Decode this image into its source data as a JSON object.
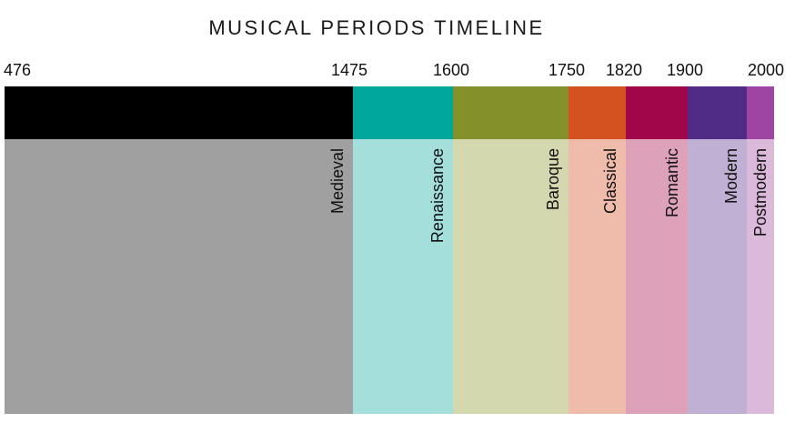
{
  "title": "MUSICAL PERIODS TIMELINE",
  "years": [
    "476",
    "1475",
    "1600",
    "1750",
    "1820",
    "1900",
    "2000"
  ],
  "periods": [
    {
      "name": "Medieval",
      "start": 476,
      "end": 1475,
      "band_color": "#000000",
      "fill_color": "#a0a0a0"
    },
    {
      "name": "Renaissance",
      "start": 1475,
      "end": 1600,
      "band_color": "#00a89c",
      "fill_color": "#a4dfdb"
    },
    {
      "name": "Baroque",
      "start": 1600,
      "end": 1750,
      "band_color": "#84902a",
      "fill_color": "#d3d8ae"
    },
    {
      "name": "Classical",
      "start": 1750,
      "end": 1820,
      "band_color": "#d35220",
      "fill_color": "#efbcab"
    },
    {
      "name": "Romantic",
      "start": 1820,
      "end": 1900,
      "band_color": "#a1064a",
      "fill_color": "#dda1ba"
    },
    {
      "name": "Modern",
      "start": 1900,
      "end": 2000,
      "band_color": "#512c86",
      "fill_color": "#c0b0d3"
    },
    {
      "name": "Postmodern",
      "start": 2000,
      "end": null,
      "band_color": "#9e45a4",
      "fill_color": "#dbb9db"
    }
  ]
}
